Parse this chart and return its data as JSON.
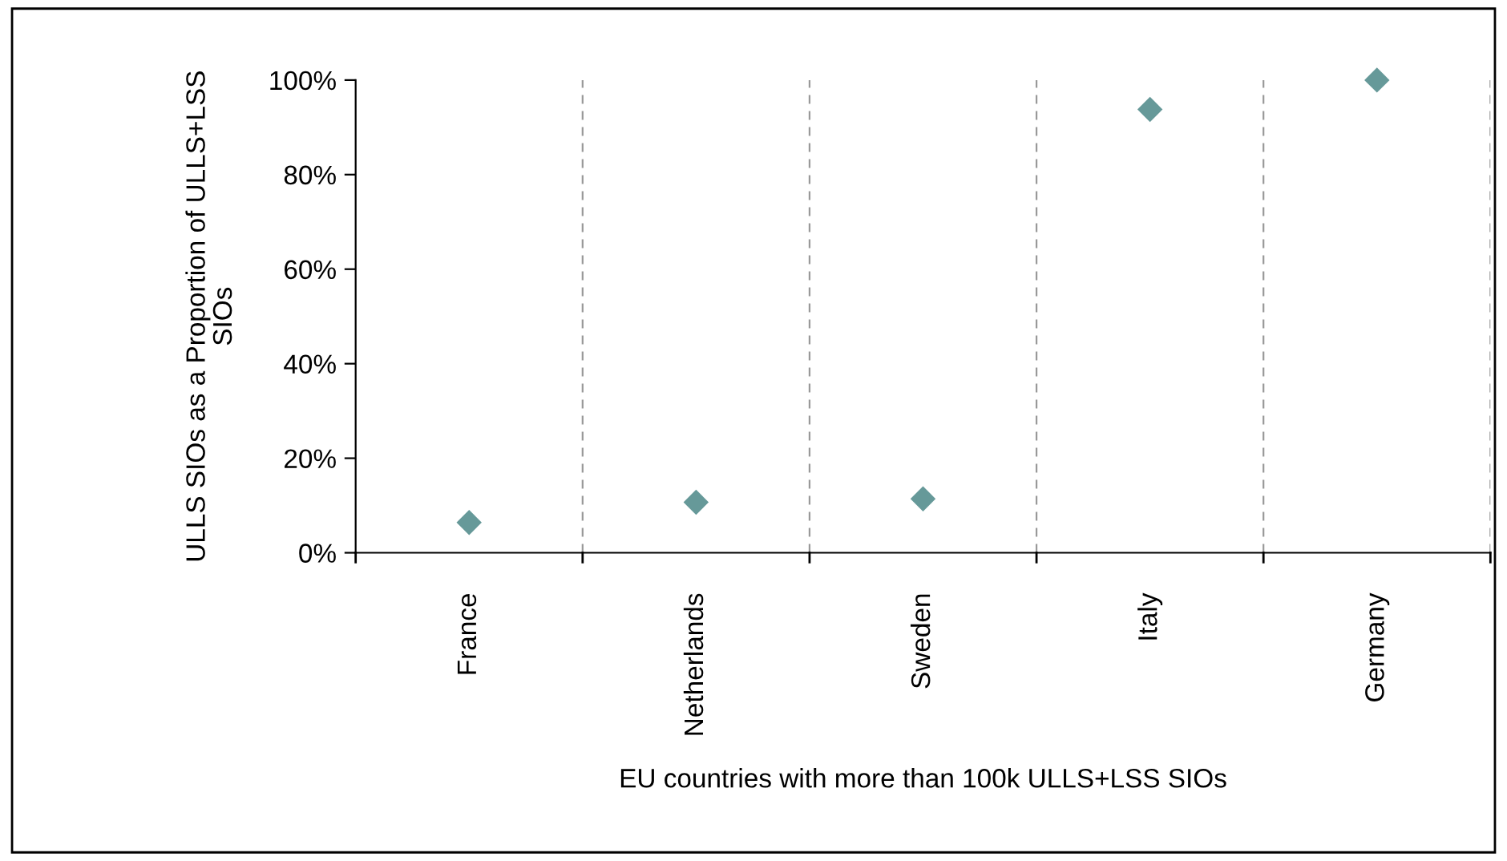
{
  "chart_data": {
    "type": "scatter",
    "categories": [
      "France",
      "Netherlands",
      "Sweden",
      "Italy",
      "Germany"
    ],
    "values": [
      6.4,
      10.7,
      11.4,
      93.8,
      100
    ],
    "color": "#669999",
    "marker": "diamond",
    "ylim": [
      0,
      100
    ],
    "yticks": [
      {
        "value": 0,
        "label": "0%"
      },
      {
        "value": 20,
        "label": "20%"
      },
      {
        "value": 40,
        "label": "40%"
      },
      {
        "value": 60,
        "label": "60%"
      },
      {
        "value": 80,
        "label": "80%"
      },
      {
        "value": 100,
        "label": "100%"
      }
    ],
    "ylabel": "ULLS SIOs as a Proportion of ULLS+LSS\nSIOs",
    "xlabel": "EU countries with more than 100k ULLS+LSS SIOs",
    "grid": "x"
  }
}
